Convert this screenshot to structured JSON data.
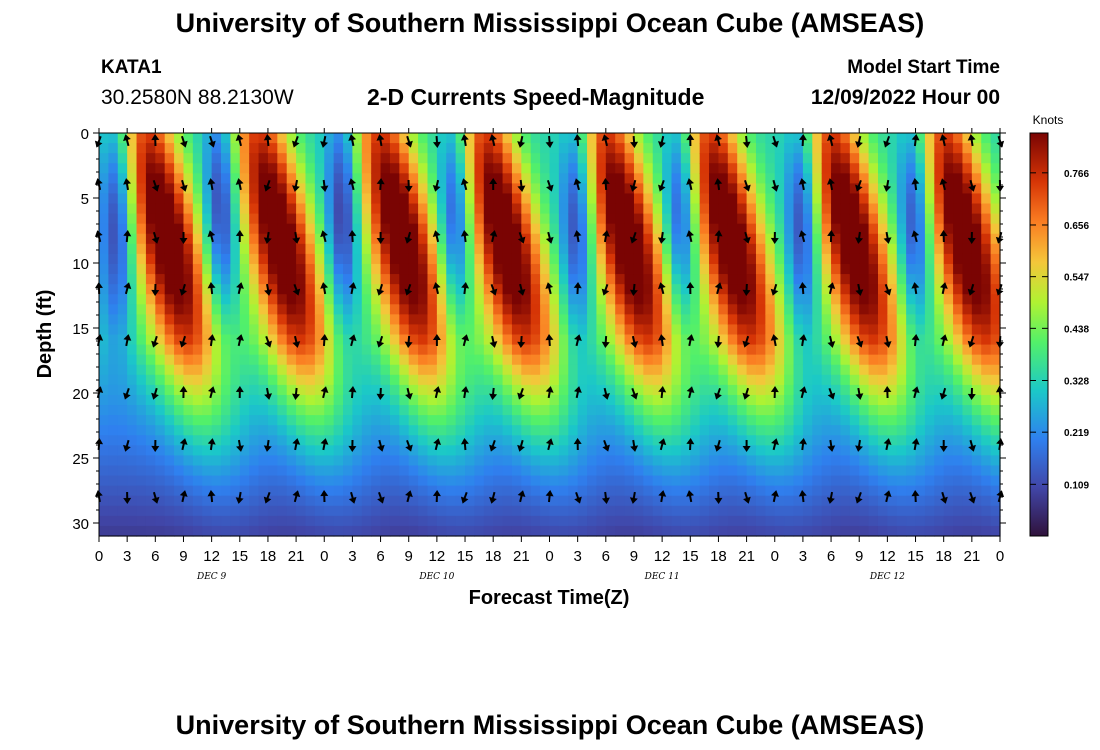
{
  "header": {
    "title": "University of Southern Mississippi Ocean Cube (AMSEAS)",
    "station": "KATA1",
    "coords": "30.2580N  88.2130W",
    "subtitle": "2-D Currents Speed-Magnitude",
    "model_label": "Model Start Time",
    "model_time": "12/09/2022 Hour 00"
  },
  "footer": {
    "title": "University of Southern Mississippi Ocean Cube (AMSEAS)"
  },
  "chart_data": {
    "type": "heatmap",
    "title": "2-D Currents Speed-Magnitude",
    "xlabel": "Forecast Time(Z)",
    "ylabel": "Depth (ft)",
    "xlim": [
      0,
      96
    ],
    "ylim": [
      31,
      0
    ],
    "x_ticks": [
      "0",
      "3",
      "6",
      "9",
      "12",
      "15",
      "18",
      "21",
      "0",
      "3",
      "6",
      "9",
      "12",
      "15",
      "18",
      "21",
      "0",
      "3",
      "6",
      "9",
      "12",
      "15",
      "18",
      "21",
      "0",
      "3",
      "6",
      "9",
      "12",
      "15",
      "18",
      "21",
      "0"
    ],
    "y_ticks": [
      0,
      5,
      10,
      15,
      20,
      25,
      30
    ],
    "day_labels": [
      "DEC 9",
      "DEC 10",
      "DEC 11",
      "DEC 12"
    ],
    "colorbar": {
      "unit": "Knots",
      "ticks": [
        "0.766",
        "0.656",
        "0.547",
        "0.438",
        "0.328",
        "0.219",
        "0.109"
      ],
      "min": 0.0,
      "max": 0.85
    },
    "high_speed_cores_hours": [
      8,
      20,
      33,
      44,
      57,
      68,
      81,
      93
    ],
    "low_speed_troughs_hours": [
      2,
      13,
      26,
      38,
      51,
      62,
      75,
      87
    ],
    "arrow_depths_ft": [
      0,
      4,
      8,
      12,
      16,
      20,
      24,
      28
    ],
    "arrow_interval_hours": 3
  }
}
